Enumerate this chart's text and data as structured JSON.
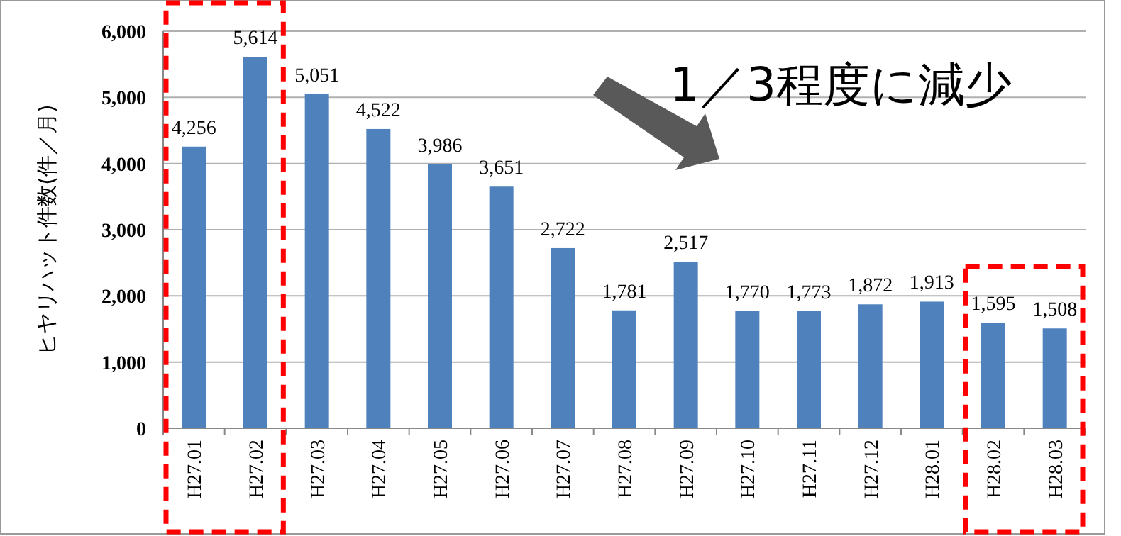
{
  "chart_data": {
    "type": "bar",
    "ylabel": "ヒヤリハット件数(件／月)",
    "categories": [
      "H27.01",
      "H27.02",
      "H27.03",
      "H27.04",
      "H27.05",
      "H27.06",
      "H27.07",
      "H27.08",
      "H27.09",
      "H27.10",
      "H27.11",
      "H27.12",
      "H28.01",
      "H28.02",
      "H28.03"
    ],
    "values": [
      4256,
      5614,
      5051,
      4522,
      3986,
      3651,
      2722,
      1781,
      2517,
      1770,
      1773,
      1872,
      1913,
      1595,
      1508
    ],
    "value_labels": [
      "4,256",
      "5,614",
      "5,051",
      "4,522",
      "3,986",
      "3,651",
      "2,722",
      "1,781",
      "2,517",
      "1,770",
      "1,773",
      "1,872",
      "1,913",
      "1,595",
      "1,508"
    ],
    "color": "#4f81bd",
    "ylim": [
      0,
      6000
    ],
    "yticks": [
      0,
      {
        "value": 1000,
        "label": "1,000"
      },
      {
        "value": 2000,
        "label": "2,000"
      },
      {
        "value": 3000,
        "label": "3,000"
      },
      {
        "value": 4000,
        "label": "4,000"
      },
      {
        "value": 5000,
        "label": "5,000"
      },
      {
        "value": 6000,
        "label": "6,000"
      }
    ],
    "grid": "y",
    "annotations": [
      "1／3程度に減少"
    ]
  }
}
